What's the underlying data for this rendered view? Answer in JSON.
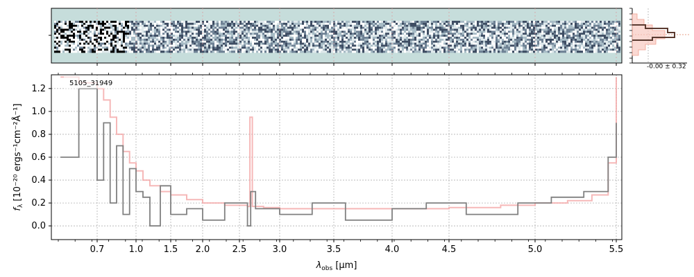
{
  "chart_data": {
    "type": "line",
    "object_id": "5105_31949",
    "xlabel_symbol": "λ",
    "xlabel_sub": "obs",
    "xlabel_unit": " [μm]",
    "ylabel_symbol": "f",
    "ylabel_sub": "λ",
    "ylabel_unit": " [10⁻²⁰ ergs⁻¹cm⁻²Å⁻¹]",
    "ylim": [
      -0.12,
      1.32
    ],
    "xlim": [
      0.6,
      5.52
    ],
    "x_scale": "nonlinear-dispersion",
    "x_ticks": [
      {
        "value": 0.7,
        "label": "0.7"
      },
      {
        "value": 1.0,
        "label": "1.0"
      },
      {
        "value": 1.5,
        "label": "1.5"
      },
      {
        "value": 2.0,
        "label": "2.0"
      },
      {
        "value": 2.5,
        "label": "2.5"
      },
      {
        "value": 3.0,
        "label": "3.0"
      },
      {
        "value": 3.5,
        "label": "3.5"
      },
      {
        "value": 4.0,
        "label": "4.0"
      },
      {
        "value": 4.5,
        "label": "4.5"
      },
      {
        "value": 5.0,
        "label": "5.0"
      },
      {
        "value": 5.5,
        "label": "5.5"
      }
    ],
    "y_ticks": [
      {
        "value": 0.0,
        "label": "0.0"
      },
      {
        "value": 0.2,
        "label": "0.2"
      },
      {
        "value": 0.4,
        "label": "0.4"
      },
      {
        "value": 0.6,
        "label": "0.6"
      },
      {
        "value": 0.8,
        "label": "0.8"
      },
      {
        "value": 1.0,
        "label": "1.0"
      },
      {
        "value": 1.2,
        "label": "1.2"
      }
    ],
    "grid": true,
    "series": [
      {
        "role": "flux",
        "color": "#808080",
        "x": [
          0.62,
          0.66,
          0.7,
          0.75,
          0.8,
          0.85,
          0.9,
          0.95,
          1.0,
          1.1,
          1.2,
          1.35,
          1.5,
          1.75,
          2.0,
          2.3,
          2.6,
          2.64,
          2.7,
          3.0,
          3.3,
          3.6,
          4.0,
          4.3,
          4.6,
          4.9,
          5.1,
          5.3,
          5.45,
          5.5
        ],
        "y": [
          0.6,
          1.2,
          0.4,
          0.9,
          0.2,
          0.7,
          0.1,
          0.5,
          0.3,
          0.25,
          0.0,
          0.35,
          0.1,
          0.15,
          0.05,
          0.2,
          0.0,
          0.3,
          0.15,
          0.1,
          0.2,
          0.05,
          0.15,
          0.2,
          0.1,
          0.2,
          0.25,
          0.3,
          0.6,
          0.9
        ]
      },
      {
        "role": "error",
        "color": "#f4a6a6",
        "x": [
          0.62,
          0.66,
          0.7,
          0.75,
          0.8,
          0.85,
          0.9,
          0.95,
          1.0,
          1.1,
          1.2,
          1.35,
          1.5,
          1.75,
          2.0,
          2.3,
          2.6,
          2.63,
          2.66,
          2.8,
          3.0,
          3.5,
          4.0,
          4.5,
          4.8,
          5.0,
          5.2,
          5.35,
          5.45,
          5.5
        ],
        "y": [
          1.3,
          1.25,
          1.2,
          1.1,
          0.95,
          0.8,
          0.65,
          0.55,
          0.48,
          0.4,
          0.35,
          0.3,
          0.27,
          0.23,
          0.2,
          0.18,
          0.17,
          0.95,
          0.17,
          0.16,
          0.15,
          0.15,
          0.15,
          0.16,
          0.18,
          0.2,
          0.22,
          0.27,
          0.55,
          1.3
        ]
      }
    ],
    "twod_panel": {
      "colormap": "bone",
      "background": "#c6dddb"
    },
    "side_panel_label": "-0.00 ± 0.32"
  }
}
